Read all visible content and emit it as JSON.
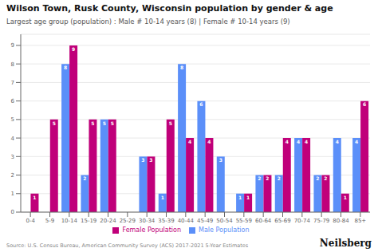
{
  "chart_data": {
    "type": "bar",
    "title": "Wilson Town, Rusk County, Wisconsin population by gender & age",
    "subtitle": "Largest age group (population) : Male # 10-14 years (8) | Female # 10-14 years (9)",
    "categories": [
      "0-4",
      "5-9",
      "10-14",
      "15-19",
      "20-24",
      "25-29",
      "30-34",
      "35-39",
      "40-44",
      "45-49",
      "50-54",
      "55-59",
      "60-64",
      "65-69",
      "70-74",
      "75-79",
      "80-84",
      "85+"
    ],
    "series": [
      {
        "name": "Male Population",
        "color": "#5B8FF9",
        "values": [
          0,
          0,
          8,
          2,
          5,
          0,
          3,
          1,
          8,
          6,
          3,
          1,
          2,
          2,
          4,
          2,
          4,
          4
        ]
      },
      {
        "name": "Female Population",
        "color": "#C0007A",
        "values": [
          1,
          5,
          9,
          5,
          5,
          0,
          3,
          5,
          4,
          4,
          0,
          1,
          2,
          4,
          4,
          2,
          1,
          6
        ]
      }
    ],
    "ylim": [
      0,
      9.6
    ],
    "yticks": [
      0,
      1,
      2,
      3,
      4,
      5,
      6,
      7,
      8,
      9
    ],
    "grid": true,
    "data_labels": true,
    "legend": "bottom",
    "annotations": [
      "Source: U.S. Census Bureau, American Community Survey (ACS) 2017-2021 5-Year Estimates",
      "Neilsberg"
    ]
  }
}
